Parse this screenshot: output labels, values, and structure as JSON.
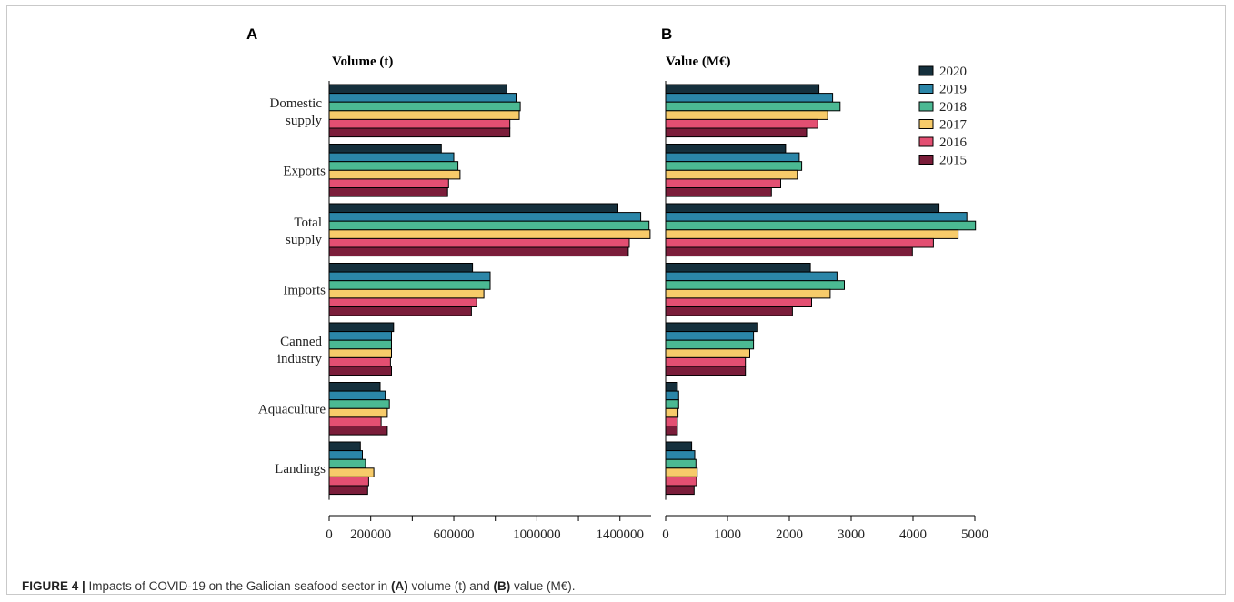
{
  "caption": {
    "label": "FIGURE 4 |",
    "text_1": " Impacts of COVID-19 on the Galician seafood sector in ",
    "a_marker": "(A)",
    "text_2": " volume (t) and ",
    "b_marker": "(B)",
    "text_3": " value (M€)."
  },
  "colors": {
    "2020": "#15303d",
    "2019": "#2b86a8",
    "2018": "#4bb993",
    "2017": "#f7cb6a",
    "2016": "#e34f72",
    "2015": "#7b1d3a",
    "label_accent": "#c0144c"
  },
  "chart_data": [
    {
      "type": "bar",
      "orientation": "horizontal",
      "panel": "A",
      "title": "Volume (t)",
      "categories": [
        "Domestic supply",
        "Exports",
        "Total supply",
        "Imports",
        "Canned industry",
        "Aquaculture",
        "Landings"
      ],
      "xlim": [
        0,
        1550000
      ],
      "xticks": [
        0,
        200000,
        600000,
        1000000,
        1400000
      ],
      "xticklabels": [
        "0",
        "200000",
        "600000",
        "1000000",
        "1400000"
      ],
      "xminor": [
        400000,
        800000,
        1200000
      ],
      "series": [
        {
          "name": "2020",
          "values": [
            855000,
            540000,
            1390000,
            690000,
            310000,
            245000,
            150000
          ]
        },
        {
          "name": "2019",
          "values": [
            900000,
            600000,
            1500000,
            775000,
            300000,
            270000,
            160000
          ]
        },
        {
          "name": "2018",
          "values": [
            920000,
            620000,
            1540000,
            775000,
            300000,
            290000,
            175000
          ]
        },
        {
          "name": "2017",
          "values": [
            915000,
            630000,
            1545000,
            745000,
            300000,
            280000,
            215000
          ]
        },
        {
          "name": "2016",
          "values": [
            870000,
            575000,
            1445000,
            710000,
            295000,
            250000,
            190000
          ]
        },
        {
          "name": "2015",
          "values": [
            870000,
            570000,
            1440000,
            685000,
            300000,
            280000,
            185000
          ]
        }
      ]
    },
    {
      "type": "bar",
      "orientation": "horizontal",
      "panel": "B",
      "title": "Value (M€)",
      "categories": [
        "Domestic supply",
        "Exports",
        "Total supply",
        "Imports",
        "Canned industry",
        "Aquaculture",
        "Landings"
      ],
      "xlim": [
        0,
        5000
      ],
      "xticks": [
        0,
        1000,
        2000,
        3000,
        4000,
        5000
      ],
      "xticklabels": [
        "0",
        "1000",
        "2000",
        "3000",
        "4000",
        "5000"
      ],
      "legend_position": "top-right",
      "series": [
        {
          "name": "2020",
          "values": [
            2480,
            1940,
            4420,
            2340,
            1490,
            190,
            420
          ]
        },
        {
          "name": "2019",
          "values": [
            2700,
            2160,
            4870,
            2770,
            1420,
            210,
            470
          ]
        },
        {
          "name": "2018",
          "values": [
            2820,
            2200,
            5010,
            2890,
            1420,
            210,
            490
          ]
        },
        {
          "name": "2017",
          "values": [
            2620,
            2130,
            4730,
            2660,
            1360,
            200,
            510
          ]
        },
        {
          "name": "2016",
          "values": [
            2460,
            1860,
            4330,
            2360,
            1290,
            190,
            500
          ]
        },
        {
          "name": "2015",
          "values": [
            2280,
            1710,
            3990,
            2050,
            1290,
            190,
            460
          ]
        }
      ]
    }
  ]
}
